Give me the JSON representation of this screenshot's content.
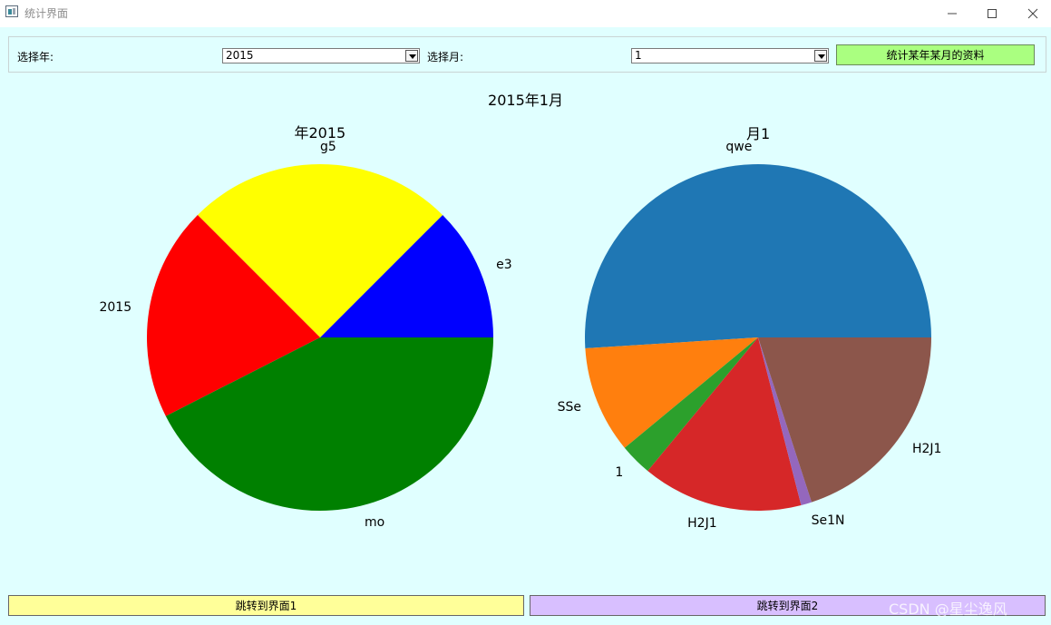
{
  "window": {
    "title": "统计界面",
    "min_icon": "minimize-icon",
    "max_icon": "maximize-icon",
    "close_icon": "close-icon"
  },
  "controls": {
    "year_label": "选择年:",
    "year_value": "2015",
    "month_label": "选择月:",
    "month_value": "1",
    "stat_button": "统计某年某月的资料"
  },
  "main_title": "2015年1月",
  "chart_data": [
    {
      "type": "pie",
      "title": "年2015",
      "labels": [
        "e3",
        "g5",
        "2015",
        "mo"
      ],
      "values": [
        12.5,
        25,
        20,
        42.5
      ],
      "colors": [
        "#0000ff",
        "#ffff00",
        "#ff0000",
        "#008000"
      ]
    },
    {
      "type": "pie",
      "title": "月1",
      "labels": [
        "qwe",
        "SSe",
        "1",
        "H2J1",
        "Se1N",
        "H2J1"
      ],
      "values": [
        51,
        10,
        3,
        15,
        1,
        20
      ],
      "colors": [
        "#1f77b4",
        "#ff7f0e",
        "#2ca02c",
        "#d62728",
        "#9467bd",
        "#8c564b"
      ]
    }
  ],
  "bottom": {
    "button1": "跳转到界面1",
    "button2": "跳转到界面2",
    "button1_color": "#ffff99",
    "button2_color": "#d8bfff"
  },
  "watermark": "CSDN @星尘逸风"
}
